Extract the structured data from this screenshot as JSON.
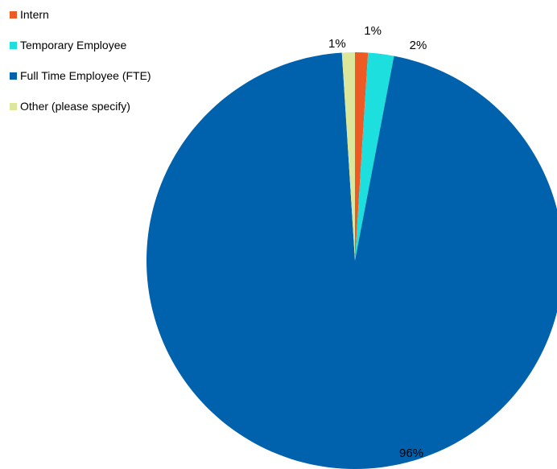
{
  "chart_data": {
    "type": "pie",
    "title": "",
    "legend_position": "top-left",
    "start_angle_deg": 0,
    "direction": "clockwise",
    "slices": [
      {
        "name": "Intern",
        "value": 1,
        "label": "1%",
        "color": "#ee5a24"
      },
      {
        "name": "Temporary Employee",
        "value": 2,
        "label": "2%",
        "color": "#1de0de"
      },
      {
        "name": "Full Time Employee (FTE)",
        "value": 96,
        "label": "96%",
        "color": "#0061ad"
      },
      {
        "name": "Other (please specify)",
        "value": 1,
        "label": "1%",
        "color": "#dde79b"
      }
    ]
  }
}
